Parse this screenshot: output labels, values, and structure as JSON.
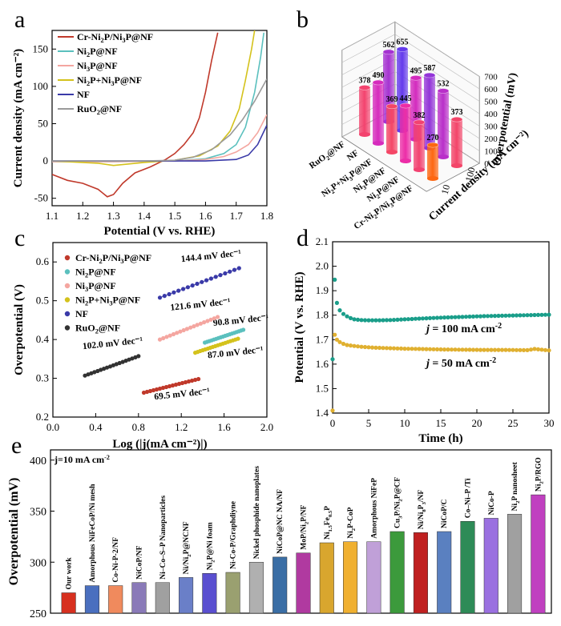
{
  "panel_labels": {
    "a": "a",
    "b": "b",
    "c": "c",
    "d": "d",
    "e": "e"
  },
  "chart_data": [
    {
      "panel": "a",
      "type": "line",
      "xlabel": "Potential (V vs. RHE)",
      "ylabel": "Current density (mA cm⁻²)",
      "xlim": [
        1.1,
        1.8
      ],
      "ylim": [
        -60,
        175
      ],
      "xticks": [
        1.1,
        1.2,
        1.3,
        1.4,
        1.5,
        1.6,
        1.7,
        1.8
      ],
      "yticks": [
        -50,
        0,
        50,
        100,
        150
      ],
      "legend_position": "top-left",
      "series": [
        {
          "name": "Cr-Ni2P/Ni3P@NF",
          "label": {
            "base": "Cr-Ni",
            "parts": [
              [
                "sub",
                "2"
              ],
              [
                "t",
                "P/Ni"
              ],
              [
                "sub",
                "3"
              ],
              [
                "t",
                "P@NF"
              ]
            ]
          },
          "color": "#c0392b",
          "x": [
            1.1,
            1.15,
            1.2,
            1.25,
            1.28,
            1.3,
            1.33,
            1.37,
            1.42,
            1.47,
            1.5,
            1.53,
            1.56,
            1.58,
            1.6,
            1.62,
            1.64
          ],
          "y": [
            -18,
            -26,
            -30,
            -38,
            -48,
            -45,
            -30,
            -16,
            -8,
            2,
            10,
            22,
            38,
            58,
            92,
            135,
            172
          ]
        },
        {
          "name": "Ni2P@NF",
          "label": {
            "base": "Ni",
            "parts": [
              [
                "sub",
                "2"
              ],
              [
                "t",
                "P@NF"
              ]
            ]
          },
          "color": "#5bc0be",
          "x": [
            1.1,
            1.3,
            1.5,
            1.6,
            1.66,
            1.7,
            1.73,
            1.76,
            1.78,
            1.79
          ],
          "y": [
            -1,
            -1,
            0,
            3,
            10,
            22,
            45,
            92,
            140,
            172
          ]
        },
        {
          "name": "Ni3P@NF",
          "label": {
            "base": "Ni",
            "parts": [
              [
                "sub",
                "3"
              ],
              [
                "t",
                "P@NF"
              ]
            ]
          },
          "color": "#f4a6a0",
          "x": [
            1.1,
            1.3,
            1.5,
            1.6,
            1.66,
            1.7,
            1.74,
            1.77,
            1.8
          ],
          "y": [
            -1,
            -1,
            0,
            2,
            6,
            12,
            22,
            38,
            62
          ]
        },
        {
          "name": "Ni2P+Ni3P@NF",
          "label": {
            "base": "Ni",
            "parts": [
              [
                "sub",
                "2"
              ],
              [
                "t",
                "P+Ni"
              ],
              [
                "sub",
                "3"
              ],
              [
                "t",
                "P@NF"
              ]
            ]
          },
          "color": "#d4c21c",
          "x": [
            1.1,
            1.25,
            1.3,
            1.4,
            1.5,
            1.58,
            1.64,
            1.68,
            1.71,
            1.73,
            1.75,
            1.76
          ],
          "y": [
            0,
            -3,
            -6,
            -2,
            1,
            7,
            20,
            40,
            70,
            108,
            150,
            175
          ]
        },
        {
          "name": "NF",
          "label": {
            "base": "NF",
            "parts": []
          },
          "color": "#3a3aa8",
          "x": [
            1.1,
            1.4,
            1.6,
            1.7,
            1.74,
            1.77,
            1.8
          ],
          "y": [
            0,
            0,
            0,
            2,
            8,
            22,
            48
          ]
        },
        {
          "name": "RuO2@NF",
          "label": {
            "base": "RuO",
            "parts": [
              [
                "sub",
                "2"
              ],
              [
                "t",
                "@NF"
              ]
            ]
          },
          "color": "#9a9a9a",
          "x": [
            1.1,
            1.4,
            1.5,
            1.56,
            1.62,
            1.68,
            1.72,
            1.76,
            1.8
          ],
          "y": [
            0,
            0,
            1,
            5,
            15,
            35,
            55,
            80,
            110
          ]
        }
      ]
    },
    {
      "panel": "b",
      "type": "bar3d",
      "zlabel": "Overpotential (mV)",
      "zticks": [
        0,
        100,
        200,
        300,
        400,
        500,
        600,
        700
      ],
      "ylabel": "Current density (mA cm⁻²)",
      "yticks": [
        "10",
        "100"
      ],
      "categories": [
        "RuO2@NF",
        "NF",
        "Ni2P+Ni3P@NF",
        "Ni3P@NF",
        "Ni2P@NF",
        "Cr-Ni2P/Ni3P@NF"
      ],
      "category_labels": [
        {
          "base": "RuO",
          "parts": [
            [
              "sub",
              "2"
            ],
            [
              "t",
              "@NF"
            ]
          ]
        },
        {
          "base": "NF",
          "parts": []
        },
        {
          "base": "Ni",
          "parts": [
            [
              "sub",
              "2"
            ],
            [
              "t",
              "P+Ni"
            ],
            [
              "sub",
              "3"
            ],
            [
              "t",
              "P@NF"
            ]
          ]
        },
        {
          "base": "Ni",
          "parts": [
            [
              "sub",
              "3"
            ],
            [
              "t",
              "P@NF"
            ]
          ]
        },
        {
          "base": "Ni",
          "parts": [
            [
              "sub",
              "2"
            ],
            [
              "t",
              "P@NF"
            ]
          ]
        },
        {
          "base": "Cr-Ni",
          "parts": [
            [
              "sub",
              "2"
            ],
            [
              "t",
              "P/Ni"
            ],
            [
              "sub",
              "3"
            ],
            [
              "t",
              "P@NF"
            ]
          ]
        }
      ],
      "series": [
        {
          "name": "10",
          "values": [
            378,
            490,
            369,
            445,
            382,
            270
          ],
          "value_labels": [
            "378",
            "490",
            "369",
            "445",
            "382",
            "270"
          ]
        },
        {
          "name": "100",
          "values": [
            562,
            655,
            495,
            587,
            532,
            373
          ],
          "value_labels": [
            "562",
            "655",
            "495",
            "587",
            "532",
            "373"
          ]
        }
      ]
    },
    {
      "panel": "c",
      "type": "scatter",
      "xlabel": "Log (|j(mA cm⁻²)|)",
      "ylabel": "Overpotential (V)",
      "xlim": [
        0.0,
        2.0
      ],
      "ylim": [
        0.2,
        0.65
      ],
      "xticks": [
        0.0,
        0.4,
        0.8,
        1.2,
        1.6,
        2.0
      ],
      "yticks": [
        0.2,
        0.3,
        0.4,
        0.5,
        0.6
      ],
      "legend_position": "top-left",
      "series": [
        {
          "name": "Cr-Ni2P/Ni3P@NF",
          "label": {
            "base": "Cr-Ni",
            "parts": [
              [
                "sub",
                "2"
              ],
              [
                "t",
                "P/Ni"
              ],
              [
                "sub",
                "3"
              ],
              [
                "t",
                "P@NF"
              ]
            ]
          },
          "color": "#c0392b",
          "x0": 0.85,
          "x1": 1.36,
          "y0": 0.263,
          "y1": 0.298,
          "annotation": "69.5 mV dec⁻¹"
        },
        {
          "name": "Ni2P@NF",
          "label": {
            "base": "Ni",
            "parts": [
              [
                "sub",
                "2"
              ],
              [
                "t",
                "P@NF"
              ]
            ]
          },
          "color": "#5bc0be",
          "x0": 1.42,
          "x1": 1.78,
          "y0": 0.392,
          "y1": 0.425,
          "annotation": "90.8 mV dec⁻¹"
        },
        {
          "name": "Ni3P@NF",
          "label": {
            "base": "Ni",
            "parts": [
              [
                "sub",
                "3"
              ],
              [
                "t",
                "P@NF"
              ]
            ]
          },
          "color": "#f4a6a0",
          "x0": 1.0,
          "x1": 1.54,
          "y0": 0.4,
          "y1": 0.458,
          "annotation": "121.6 mV dec⁻¹"
        },
        {
          "name": "Ni2P+Ni3P@NF",
          "label": {
            "base": "Ni",
            "parts": [
              [
                "sub",
                "2"
              ],
              [
                "t",
                "P+Ni"
              ],
              [
                "sub",
                "3"
              ],
              [
                "t",
                "P@NF"
              ]
            ]
          },
          "color": "#d4c21c",
          "x0": 1.33,
          "x1": 1.73,
          "y0": 0.366,
          "y1": 0.402,
          "annotation": "87.0 mV dec⁻¹"
        },
        {
          "name": "NF",
          "label": {
            "base": "NF",
            "parts": []
          },
          "color": "#3a3aa8",
          "x0": 1.0,
          "x1": 1.74,
          "y0": 0.508,
          "y1": 0.584,
          "annotation": "144.4 mV dec⁻¹"
        },
        {
          "name": "RuO2@NF",
          "label": {
            "base": "RuO",
            "parts": [
              [
                "sub",
                "2"
              ],
              [
                "t",
                "@NF"
              ]
            ]
          },
          "color": "#333333",
          "x0": 0.3,
          "x1": 0.8,
          "y0": 0.307,
          "y1": 0.357,
          "annotation": "102.0 mV dec⁻¹"
        }
      ]
    },
    {
      "panel": "d",
      "type": "scatter",
      "xlabel": "Time (h)",
      "ylabel": "Potential (V vs. RHE)",
      "xlim": [
        0,
        30
      ],
      "ylim": [
        1.4,
        2.1
      ],
      "xticks": [
        0,
        5,
        10,
        15,
        20,
        25,
        30
      ],
      "yticks": [
        1.4,
        1.5,
        1.6,
        1.7,
        1.8,
        1.9,
        2.0,
        2.1
      ],
      "series": [
        {
          "name": "j = 100 mA cm⁻²",
          "label_j": "j",
          "label_rest": " = 100 mA cm",
          "label_exp": "-2",
          "color": "#1a9e8a",
          "x": [
            0,
            0.3,
            0.6,
            1,
            1.5,
            2,
            2.5,
            3,
            4,
            5,
            6,
            8,
            10,
            12,
            15,
            18,
            21,
            24,
            27,
            30
          ],
          "y": [
            1.62,
            1.945,
            1.85,
            1.82,
            1.805,
            1.795,
            1.788,
            1.783,
            1.78,
            1.779,
            1.779,
            1.78,
            1.783,
            1.786,
            1.79,
            1.793,
            1.796,
            1.798,
            1.8,
            1.802
          ]
        },
        {
          "name": "j = 50 mA cm⁻²",
          "label_j": "j",
          "label_rest": " = 50 mA cm",
          "label_exp": "-2",
          "color": "#e0b030",
          "x": [
            0,
            0.3,
            0.6,
            1,
            1.5,
            2,
            3,
            4,
            5,
            6,
            8,
            10,
            12,
            15,
            18,
            21,
            24,
            27,
            28,
            30
          ],
          "y": [
            1.41,
            1.72,
            1.7,
            1.69,
            1.683,
            1.678,
            1.674,
            1.671,
            1.669,
            1.667,
            1.665,
            1.663,
            1.662,
            1.66,
            1.659,
            1.658,
            1.658,
            1.657,
            1.662,
            1.656
          ]
        }
      ]
    },
    {
      "panel": "e",
      "type": "bar",
      "ylabel": "Overpotential (mV)",
      "ylim": [
        250,
        410
      ],
      "yticks": [
        250,
        300,
        350,
        400
      ],
      "note": "j=10 mA cm",
      "note_exp": "-2",
      "categories": [
        "Our work",
        "Amorphous NiFeCoP/Ni mesh",
        "Co-Ni-P-2/NF",
        "NiCoP/NF",
        "Ni–Co–S–P Nanoparticles",
        "Ni/Ni2P@NCNF",
        "Ni2P@Ni foam",
        "Ni-Co-P/Graphdiyne",
        "Nickel phosphide nanoplates",
        "NiCoP@NC NA/NF",
        "MoP/Ni2P/NF",
        "Ni1.5Fe0.5P",
        "Ni2P-CoP",
        "Amorphous NiFeP",
        "Cu3P/Ni2P@CF",
        "Ni/Ni8P3/NF",
        "NiCoP/C",
        "Co–Ni–P /Ti",
        "NiCo-P",
        "Ni2P nanosheet",
        "Ni2P/RGO"
      ],
      "category_labels": [
        {
          "base": "Our work",
          "parts": []
        },
        {
          "base": "Amorphous NiFeCoP/Ni mesh",
          "parts": []
        },
        {
          "base": "Co-Ni-P-2/NF",
          "parts": []
        },
        {
          "base": "NiCoP/NF",
          "parts": []
        },
        {
          "base": "Ni–Co–S–P Nanoparticles",
          "parts": []
        },
        {
          "base": "Ni/Ni",
          "parts": [
            [
              "sub",
              "2"
            ],
            [
              "t",
              "P@NCNF"
            ]
          ]
        },
        {
          "base": "Ni",
          "parts": [
            [
              "sub",
              "2"
            ],
            [
              "t",
              "P@Ni foam"
            ]
          ]
        },
        {
          "base": "Ni-Co-P/Graphdiyne",
          "parts": []
        },
        {
          "base": "Nickel phosphide nanoplates",
          "parts": []
        },
        {
          "base": "NiCoP@NC NA/NF",
          "parts": []
        },
        {
          "base": "MoP/Ni",
          "parts": [
            [
              "sub",
              "2"
            ],
            [
              "t",
              "P/NF"
            ]
          ]
        },
        {
          "base": "Ni",
          "parts": [
            [
              "sub",
              "1.5"
            ],
            [
              "t",
              "Fe"
            ],
            [
              "sub",
              "0.5"
            ],
            [
              "t",
              "P"
            ]
          ]
        },
        {
          "base": "Ni",
          "parts": [
            [
              "sub",
              "2"
            ],
            [
              "t",
              "P-CoP"
            ]
          ]
        },
        {
          "base": "Amorphous NiFeP",
          "parts": []
        },
        {
          "base": "Cu",
          "parts": [
            [
              "sub",
              "3"
            ],
            [
              "t",
              "P/Ni"
            ],
            [
              "sub",
              "2"
            ],
            [
              "t",
              "P@CF"
            ]
          ]
        },
        {
          "base": "Ni/Ni",
          "parts": [
            [
              "sub",
              "8"
            ],
            [
              "t",
              "P"
            ],
            [
              "sub",
              "3"
            ],
            [
              "t",
              "/NF"
            ]
          ]
        },
        {
          "base": "NiCoP/C",
          "parts": []
        },
        {
          "base": "Co–Ni–P /Ti",
          "parts": []
        },
        {
          "base": "NiCo-P",
          "parts": []
        },
        {
          "base": "Ni",
          "parts": [
            [
              "sub",
              "2"
            ],
            [
              "t",
              "P nanosheet"
            ]
          ]
        },
        {
          "base": "Ni",
          "parts": [
            [
              "sub",
              "2"
            ],
            [
              "t",
              "P/RGO"
            ]
          ]
        }
      ],
      "values": [
        270,
        277,
        277,
        280,
        280,
        285,
        289,
        290,
        300,
        305,
        309,
        319,
        320,
        320,
        330,
        329,
        330,
        340,
        343,
        347,
        366
      ],
      "colors": [
        "#d7301f",
        "#4a6fbf",
        "#f08a5d",
        "#8a7ab8",
        "#a0a0a0",
        "#6a7fc8",
        "#5a4fd0",
        "#9aa070",
        "#b0b0b0",
        "#3a6ea5",
        "#b03aa0",
        "#d9a62e",
        "#f0b030",
        "#c0a0d8",
        "#3c9a3c",
        "#c02020",
        "#5a80c0",
        "#2e8b57",
        "#9a70e0",
        "#a0a0a0",
        "#c040c0"
      ]
    }
  ]
}
